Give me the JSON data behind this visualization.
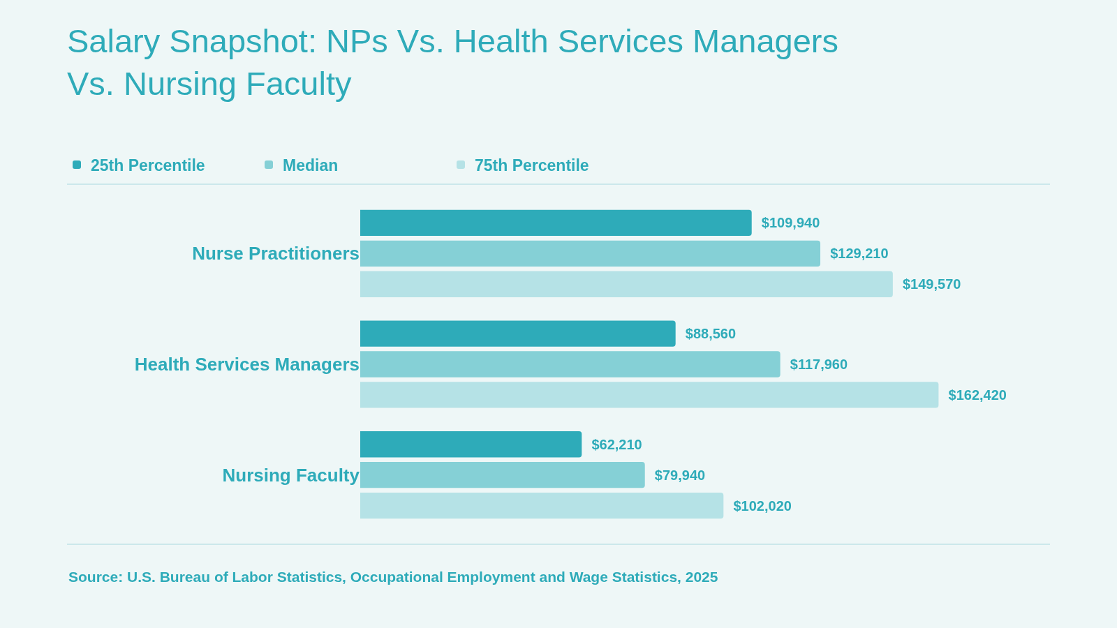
{
  "chart_data": {
    "type": "bar",
    "orientation": "horizontal",
    "title": "Salary Snapshot: NPs Vs. Health Services Managers\nVs. Nursing Faculty",
    "categories": [
      "Nurse Practitioners",
      "Health Services Managers",
      "Nursing Faculty"
    ],
    "series": [
      {
        "name": "25th Percentile",
        "color": "#2eabb9",
        "values": [
          109940,
          88560,
          62210
        ],
        "value_labels": [
          "$109,940",
          "$88,560",
          "$62,210"
        ]
      },
      {
        "name": "Median",
        "color": "#85d0d6",
        "values": [
          129210,
          117960,
          79940
        ],
        "value_labels": [
          "$129,210",
          "$117,960",
          "$79,940"
        ]
      },
      {
        "name": "75th Percentile",
        "color": "#b5e2e6",
        "values": [
          149570,
          162420,
          102020
        ],
        "value_labels": [
          "$149,570",
          "$162,420",
          "$102,020"
        ]
      }
    ],
    "legend": "top left",
    "grid": false,
    "annotations": [
      "Source: U.S. Bureau of Labor Statistics, Occupational Employment and Wage Statistics, 2025"
    ]
  }
}
